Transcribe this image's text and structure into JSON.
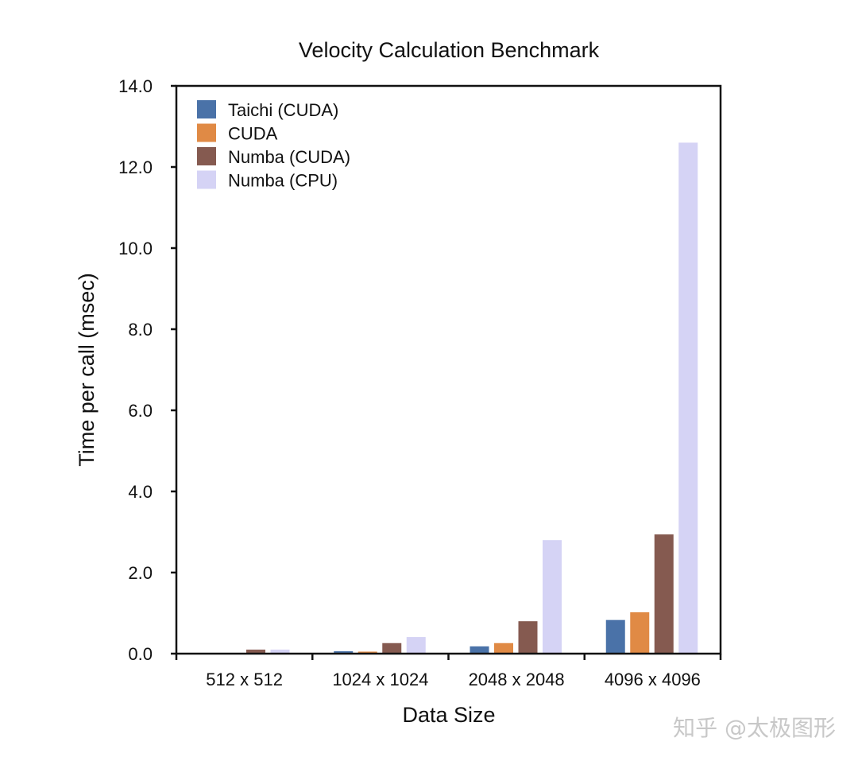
{
  "chart_data": {
    "type": "bar",
    "title": "Velocity Calculation Benchmark",
    "xlabel": "Data Size",
    "ylabel": "Time per call (msec)",
    "categories": [
      "512 x 512",
      "1024 x 1024",
      "2048 x 2048",
      "4096 x 4096"
    ],
    "ylim": [
      0,
      14
    ],
    "yticks": [
      "0.0",
      "2.0",
      "4.0",
      "6.0",
      "8.0",
      "10.0",
      "12.0",
      "14.0"
    ],
    "grid": false,
    "legend_position": "top-left",
    "series": [
      {
        "name": "Taichi (CUDA)",
        "color": "#4a72a8",
        "values": [
          0.0,
          0.06,
          0.18,
          0.83
        ]
      },
      {
        "name": "CUDA",
        "color": "#e08a45",
        "values": [
          0.0,
          0.05,
          0.26,
          1.02
        ]
      },
      {
        "name": "Numba (CUDA)",
        "color": "#855a50",
        "values": [
          0.1,
          0.26,
          0.8,
          2.94
        ]
      },
      {
        "name": "Numba (CPU)",
        "color": "#d5d3f5",
        "values": [
          0.1,
          0.41,
          2.8,
          12.6
        ]
      }
    ]
  },
  "watermark": "知乎 @太极图形"
}
